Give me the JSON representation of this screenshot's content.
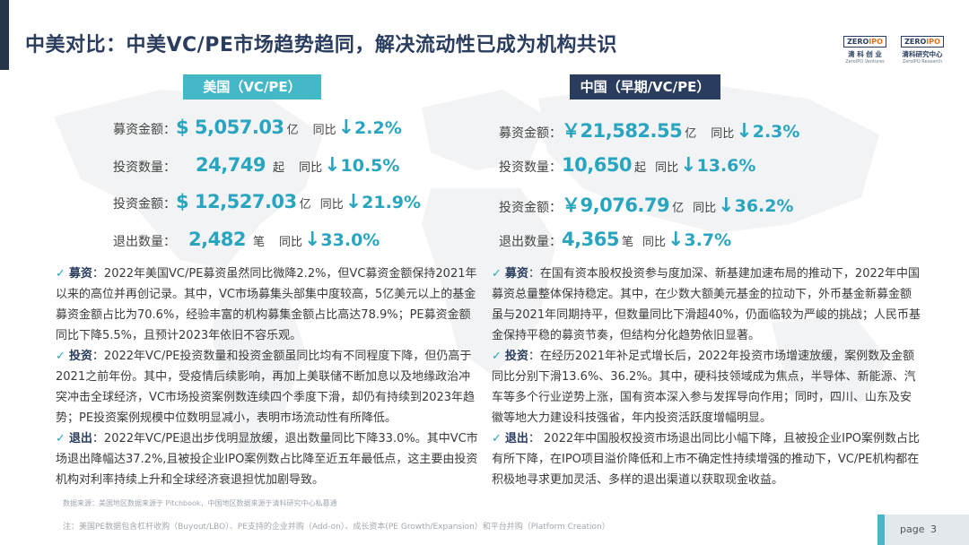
{
  "title": "中美对比：中美VC/PE市场趋势趋同，解决流动性已成为机构共识",
  "logos": [
    {
      "box_a": "ZERO",
      "box_b": "IPO",
      "cn": "清 科 创 业",
      "en": "ZeroIPO Ventures"
    },
    {
      "box_a": "ZERO",
      "box_b": "IPO",
      "cn": "清科研究中心",
      "en": "ZeroIPO Research"
    }
  ],
  "us": {
    "header": "美国（VC/PE）",
    "metrics": [
      {
        "label": "募资金额：",
        "value": "$ 5,057.03",
        "unit": "亿",
        "yoy": "同比",
        "arrow": "↓",
        "pct": "2.2%"
      },
      {
        "label": "投资数量：",
        "value": "24,749",
        "unit": "起",
        "yoy": "同比",
        "arrow": "↓",
        "pct": "10.5%"
      },
      {
        "label": "投资金额：",
        "value": "$ 12,527.03",
        "unit": "亿",
        "yoy": "同比",
        "arrow": "↓",
        "pct": "21.9%"
      },
      {
        "label": "退出数量：",
        "value": "2,482",
        "unit": "笔",
        "yoy": "同比",
        "arrow": "↓",
        "pct": "33.0%"
      }
    ],
    "bullets": [
      {
        "key": "募资",
        "text": "：2022年美国VC/PE募资虽然同比微降2.2%，但VC募资金额保持2021年以来的高位并再创记录。其中，VC市场募集头部集中度较高，5亿美元以上的基金募资金额占比为70.6%，经验丰富的机构募集金额占比高达78.9%；PE募资金额同比下降5.5%，且预计2023年依旧不容乐观。"
      },
      {
        "key": "投资",
        "text": "：2022年VC/PE投资数量和投资金额虽同比均有不同程度下降，但仍高于2021之前年份。其中，受疫情后续影响，再加上美联储不断加息以及地缘政治冲突冲击全球经济，VC市场投资案例数连续四个季度下滑，却仍有持续到2023年趋势；PE投资案例规模中位数明显减小，表明市场流动性有所降低。"
      },
      {
        "key": "退出",
        "text": "：2022年VC/PE退出步伐明显放缓，退出数量同比下降33.0%。其中VC市场退出降幅达37.2%,且被投企业IPO案例数占比降至近五年最低点，这主要由投资机构对利率持续上升和全球经济衰退担忧加剧导致。"
      }
    ]
  },
  "cn": {
    "header": "中国（早期/VC/PE）",
    "metrics": [
      {
        "label": "募资金额：",
        "value": "￥21,582.55",
        "unit": "亿",
        "yoy": "同比",
        "arrow": "↓",
        "pct": "2.3%"
      },
      {
        "label": "投资数量：",
        "value": "10,650",
        "unit": "起",
        "yoy": "同比",
        "arrow": "↓",
        "pct": "13.6%"
      },
      {
        "label": "投资金额：",
        "value": "￥9,076.79",
        "unit": "亿",
        "yoy": "同比",
        "arrow": "↓",
        "pct": "36.2%"
      },
      {
        "label": "退出数量：",
        "value": "4,365",
        "unit": "笔",
        "yoy": "同比",
        "arrow": "↓",
        "pct": "3.7%"
      }
    ],
    "bullets": [
      {
        "key": "募资",
        "text": "：在国有资本股权投资参与度加深、新基建加速布局的推动下，2022年中国募资总量整体保持稳定。其中，在少数大额美元基金的拉动下，外币基金新募金额虽与2021年同期持平，但数量同比下滑超40%，仍面临较为严峻的挑战；人民币基金保持平稳的募资节奏，但结构分化趋势依旧显著。"
      },
      {
        "key": "投资",
        "text": "：在经历2021年补足式增长后，2022年投资市场增速放缓，案例数及金额同比分别下滑13.6%、36.2%。其中，硬科技领域成为焦点，半导体、新能源、汽车等多个行业逆势上涨，国有资本深入参与发挥导向作用；同时，四川、山东及安徽等地大力建设科技强省，年内投资活跃度增幅明显。"
      },
      {
        "key": "退出",
        "text": "： 2022年中国股权投资市场退出同比小幅下降，且被投企业IPO案例数占比有所下降，在IPO项目溢价降低和上市不确定性持续增强的推动下，VC/PE机构都在积极地寻求更加灵活、多样的退出渠道以获取现金收益。"
      }
    ]
  },
  "source": "数据来源：美国地区数据来源于 Pitchbook，中国地区数据来源于清科研究中心私募通",
  "note": "注：美国PE数据包含杠杆收购（Buyout/LBO）、PE支持的企业并购（Add-on）、成长资本(PE Growth/Expansion）和平台并购（Platform Creation）",
  "page": {
    "label": "page",
    "number": "3"
  },
  "colors": {
    "accent": "#45b8c7",
    "navy": "#2a3d5e",
    "value": "#2aa5bf"
  },
  "icons": [
    "check-icon",
    "down-arrow-icon",
    "world-map-icon"
  ]
}
